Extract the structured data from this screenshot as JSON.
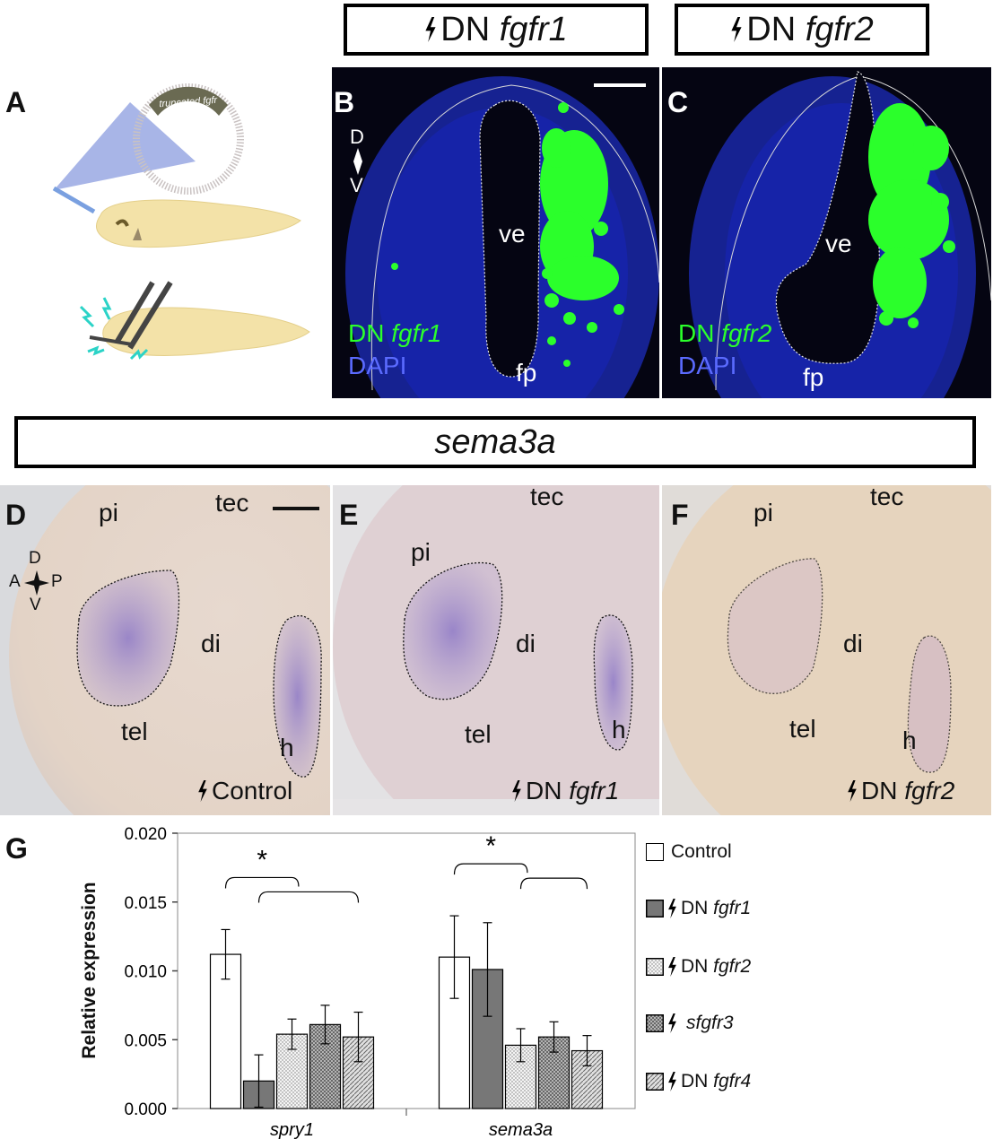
{
  "panel_letters": {
    "a": "A",
    "b": "B",
    "c": "C",
    "d": "D",
    "e": "E",
    "f": "F",
    "g": "G"
  },
  "title_boxes": {
    "fgfr1": {
      "prefix": "DN ",
      "gene": "fgfr1"
    },
    "fgfr2": {
      "prefix": "DN ",
      "gene": "fgfr2"
    },
    "sema3a": "sema3a"
  },
  "panel_a": {
    "plasmid_label": "truncated fgfr"
  },
  "panel_b": {
    "axis_d": "D",
    "axis_v": "V",
    "ve": "ve",
    "fp": "fp",
    "legend_green_prefix": "DN ",
    "legend_green_gene": "fgfr1",
    "legend_blue": "DAPI"
  },
  "panel_c": {
    "ve": "ve",
    "fp": "fp",
    "legend_green_prefix": "DN ",
    "legend_green_gene": "fgfr2",
    "legend_blue": "DAPI"
  },
  "panel_d": {
    "pi": "pi",
    "tec": "tec",
    "di": "di",
    "tel": "tel",
    "h": "h",
    "axis": {
      "d": "D",
      "a": "A",
      "p": "P",
      "v": "V"
    },
    "condition": "Control"
  },
  "panel_e": {
    "pi": "pi",
    "tec": "tec",
    "di": "di",
    "tel": "tel",
    "h": "h",
    "condition_prefix": "DN ",
    "condition_gene": "fgfr1"
  },
  "panel_f": {
    "pi": "pi",
    "tec": "tec",
    "di": "di",
    "tel": "tel",
    "h": "h",
    "condition_prefix": "DN ",
    "condition_gene": "fgfr2"
  },
  "colors": {
    "gfp": "#2bff2b",
    "dapi": "#1a2bd6",
    "ish_stain": "#8a6fbf"
  },
  "chart_data": {
    "type": "bar",
    "ylabel": "Relative expression",
    "ylim": [
      0,
      0.02
    ],
    "yticks": [
      "0.000",
      "0.005",
      "0.010",
      "0.015",
      "0.020"
    ],
    "categories": [
      "spry1",
      "sema3a"
    ],
    "significance": [
      "*",
      "*"
    ],
    "series": [
      {
        "name": "Control",
        "prefix": "",
        "pattern": "white",
        "values": [
          0.0112,
          0.011
        ],
        "errors": [
          0.0018,
          0.003
        ]
      },
      {
        "name": "DN fgfr1",
        "prefix": "DN ",
        "gene": "fgfr1",
        "pattern": "dark",
        "values": [
          0.002,
          0.0101
        ],
        "errors": [
          0.0019,
          0.0034
        ]
      },
      {
        "name": "DN fgfr2",
        "prefix": "DN ",
        "gene": "fgfr2",
        "pattern": "dots",
        "values": [
          0.0054,
          0.0046
        ],
        "errors": [
          0.0011,
          0.0012
        ]
      },
      {
        "name": "sfgfr3",
        "prefix": "",
        "gene": "sfgfr3",
        "pattern": "cross",
        "values": [
          0.0061,
          0.0052
        ],
        "errors": [
          0.0014,
          0.0011
        ]
      },
      {
        "name": "DN fgfr4",
        "prefix": "DN ",
        "gene": "fgfr4",
        "pattern": "hatch",
        "values": [
          0.0052,
          0.0042
        ],
        "errors": [
          0.0018,
          0.0011
        ]
      }
    ]
  }
}
